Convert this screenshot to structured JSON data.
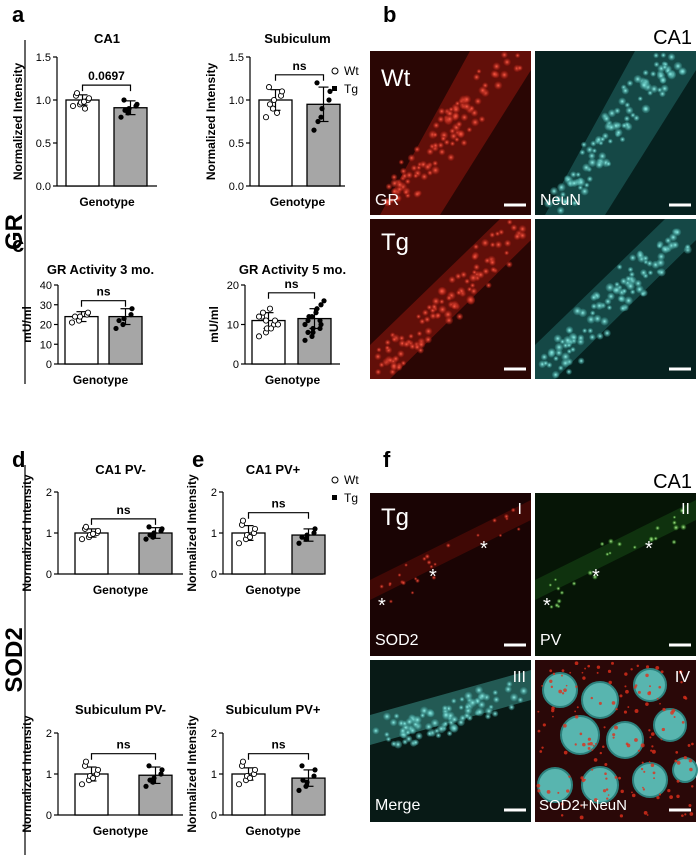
{
  "panel_letters": {
    "a": "a",
    "b": "b",
    "c": "c",
    "d": "d",
    "e": "e",
    "f": "f"
  },
  "side_labels": {
    "gr": "GR",
    "sod2": "SOD2"
  },
  "legend": {
    "wt": "Wt",
    "tg": "Tg"
  },
  "colors": {
    "wt_fill": "#ffffff",
    "tg_fill": "#a6a6a6",
    "gr_red": "#d9261c",
    "neun_cyan": "#4fd6cf",
    "pv_green": "#3fcf3a",
    "bg_dark": "#1a0404"
  },
  "micrographs": {
    "b": {
      "region": "CA1",
      "top_left": "Wt",
      "bottom_left": "Tg",
      "gr_label": "GR",
      "neun_label": "NeuN"
    },
    "f": {
      "region": "CA1",
      "geno": "Tg",
      "I": "I",
      "II": "II",
      "III": "III",
      "IV": "IV",
      "sod2_label": "SOD2",
      "pv_label": "PV",
      "merge_label": "Merge",
      "combo_label": "SOD2+NeuN",
      "asterisk": "*"
    }
  },
  "chart_data": [
    {
      "id": "a1",
      "type": "bar",
      "title": "CA1",
      "ylabel": "Normalized Intensity",
      "xlabel": "Genotype",
      "ylim": [
        0,
        1.5
      ],
      "yticks": [
        0,
        0.5,
        1.0,
        1.5
      ],
      "ytick_labels": [
        "0.0",
        "0.5",
        "1.0",
        "1.5"
      ],
      "categories": [
        "Wt",
        "Tg"
      ],
      "values": [
        1.0,
        0.91
      ],
      "errors": [
        0.06,
        0.08
      ],
      "points": [
        [
          0.93,
          0.95,
          0.97,
          1.0,
          1.02,
          1.05,
          1.08,
          0.98,
          0.9
        ],
        [
          0.8,
          0.85,
          0.9,
          0.93,
          0.95,
          1.0,
          0.88
        ]
      ],
      "sig": "0.0697"
    },
    {
      "id": "a2",
      "type": "bar",
      "title": "Subiculum",
      "ylabel": "Normalized Intensity",
      "xlabel": "Genotype",
      "ylim": [
        0,
        1.5
      ],
      "yticks": [
        0,
        0.5,
        1.0,
        1.5
      ],
      "ytick_labels": [
        "0.0",
        "0.5",
        "1.0",
        "1.5"
      ],
      "categories": [
        "Wt",
        "Tg"
      ],
      "values": [
        1.0,
        0.95
      ],
      "errors": [
        0.12,
        0.2
      ],
      "points": [
        [
          0.8,
          0.9,
          1.0,
          1.05,
          1.1,
          1.15,
          0.95,
          0.85
        ],
        [
          0.65,
          0.8,
          0.9,
          1.0,
          1.1,
          1.2,
          0.75
        ]
      ],
      "sig": "ns"
    },
    {
      "id": "c1",
      "type": "bar",
      "title": "GR Activity 3 mo.",
      "ylabel": "mU/ml",
      "xlabel": "Genotype",
      "ylim": [
        0,
        40
      ],
      "yticks": [
        0,
        10,
        20,
        30,
        40
      ],
      "ytick_labels": [
        "0",
        "10",
        "20",
        "30",
        "40"
      ],
      "categories": [
        "Wt",
        "Tg"
      ],
      "values": [
        24,
        24
      ],
      "errors": [
        2.5,
        4
      ],
      "points": [
        [
          21,
          22,
          24,
          25,
          26,
          24
        ],
        [
          18,
          20,
          23,
          25,
          28,
          22
        ]
      ],
      "sig": "ns"
    },
    {
      "id": "c2",
      "type": "bar",
      "title": "GR Activity 5 mo.",
      "ylabel": "mU/ml",
      "xlabel": "Genotype",
      "ylim": [
        0,
        20
      ],
      "yticks": [
        0,
        10,
        20
      ],
      "ytick_labels": [
        "0",
        "10",
        "20"
      ],
      "categories": [
        "Wt",
        "Tg"
      ],
      "values": [
        11,
        11.5
      ],
      "errors": [
        2,
        2.5
      ],
      "points": [
        [
          7,
          8,
          9,
          10,
          11,
          12,
          13,
          14,
          9,
          10,
          12,
          11
        ],
        [
          6,
          7,
          8,
          9,
          10,
          11,
          12,
          13,
          14,
          16,
          10,
          12,
          9,
          11,
          15,
          8
        ]
      ],
      "sig": "ns"
    },
    {
      "id": "d1",
      "type": "bar",
      "title": "CA1 PV-",
      "ylabel": "Normalized Intensity",
      "xlabel": "Genotype",
      "ylim": [
        0,
        2
      ],
      "yticks": [
        0,
        1,
        2
      ],
      "ytick_labels": [
        "0",
        "1",
        "2"
      ],
      "categories": [
        "Wt",
        "Tg"
      ],
      "values": [
        1.0,
        1.0
      ],
      "errors": [
        0.1,
        0.13
      ],
      "points": [
        [
          0.85,
          0.9,
          0.95,
          1.0,
          1.05,
          1.1,
          1.15,
          0.98
        ],
        [
          0.85,
          0.9,
          1.0,
          1.05,
          1.1,
          1.15,
          0.95
        ]
      ],
      "sig": "ns"
    },
    {
      "id": "e1",
      "type": "bar",
      "title": "CA1 PV+",
      "ylabel": "Normalized Intensity",
      "xlabel": "Genotype",
      "ylim": [
        0,
        2
      ],
      "yticks": [
        0,
        1,
        2
      ],
      "ytick_labels": [
        "0",
        "1",
        "2"
      ],
      "categories": [
        "Wt",
        "Tg"
      ],
      "values": [
        1.0,
        0.95
      ],
      "errors": [
        0.18,
        0.15
      ],
      "points": [
        [
          0.75,
          0.85,
          0.95,
          1.0,
          1.1,
          1.2,
          1.3,
          0.9
        ],
        [
          0.75,
          0.85,
          0.95,
          1.0,
          1.1,
          0.9
        ]
      ],
      "sig": "ns"
    },
    {
      "id": "d2",
      "type": "bar",
      "title": "Subiculum PV-",
      "ylabel": "Normalized Intensity",
      "xlabel": "Genotype",
      "ylim": [
        0,
        2
      ],
      "yticks": [
        0,
        1,
        2
      ],
      "ytick_labels": [
        "0",
        "1",
        "2"
      ],
      "categories": [
        "Wt",
        "Tg"
      ],
      "values": [
        1.0,
        0.97
      ],
      "errors": [
        0.17,
        0.2
      ],
      "points": [
        [
          0.75,
          0.85,
          0.95,
          1.0,
          1.1,
          1.2,
          1.3,
          0.9
        ],
        [
          0.7,
          0.8,
          0.9,
          1.0,
          1.1,
          1.2,
          0.85
        ]
      ],
      "sig": "ns"
    },
    {
      "id": "e2",
      "type": "bar",
      "title": "Subiculum PV+",
      "ylabel": "Normalized Intensity",
      "xlabel": "Genotype",
      "ylim": [
        0,
        2
      ],
      "yticks": [
        0,
        1,
        2
      ],
      "ytick_labels": [
        "0",
        "1",
        "2"
      ],
      "categories": [
        "Wt",
        "Tg"
      ],
      "values": [
        1.0,
        0.9
      ],
      "errors": [
        0.15,
        0.2
      ],
      "points": [
        [
          0.75,
          0.85,
          0.95,
          1.0,
          1.1,
          1.2,
          1.3,
          0.9
        ],
        [
          0.6,
          0.7,
          0.8,
          0.95,
          1.1,
          1.2,
          0.85
        ]
      ],
      "sig": "ns"
    }
  ]
}
